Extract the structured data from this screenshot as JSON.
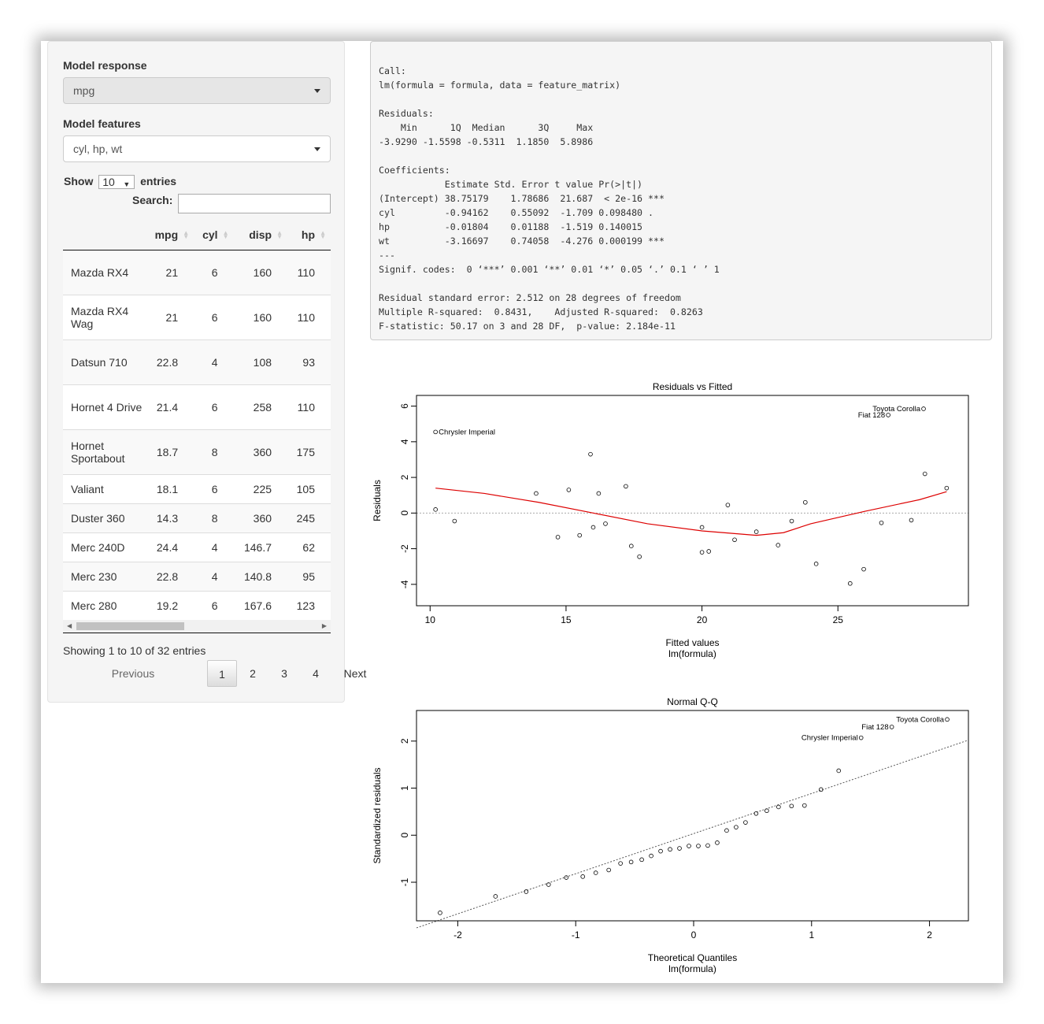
{
  "sidebar": {
    "response_label": "Model response",
    "response_value": "mpg",
    "features_label": "Model features",
    "features_value": "cyl, hp, wt",
    "show_label": "Show",
    "entries_value": "10",
    "entries_label": "entries",
    "search_label": "Search:",
    "search_value": ""
  },
  "table": {
    "columns": [
      "",
      "mpg",
      "cyl",
      "disp",
      "hp"
    ],
    "rows": [
      {
        "name": "Mazda RX4",
        "mpg": "21",
        "cyl": "6",
        "disp": "160",
        "hp": "110"
      },
      {
        "name": "Mazda RX4 Wag",
        "mpg": "21",
        "cyl": "6",
        "disp": "160",
        "hp": "110"
      },
      {
        "name": "Datsun 710",
        "mpg": "22.8",
        "cyl": "4",
        "disp": "108",
        "hp": "93"
      },
      {
        "name": "Hornet 4 Drive",
        "mpg": "21.4",
        "cyl": "6",
        "disp": "258",
        "hp": "110"
      },
      {
        "name": "Hornet Sportabout",
        "mpg": "18.7",
        "cyl": "8",
        "disp": "360",
        "hp": "175"
      },
      {
        "name": "Valiant",
        "mpg": "18.1",
        "cyl": "6",
        "disp": "225",
        "hp": "105"
      },
      {
        "name": "Duster 360",
        "mpg": "14.3",
        "cyl": "8",
        "disp": "360",
        "hp": "245"
      },
      {
        "name": "Merc 240D",
        "mpg": "24.4",
        "cyl": "4",
        "disp": "146.7",
        "hp": "62"
      },
      {
        "name": "Merc 230",
        "mpg": "22.8",
        "cyl": "4",
        "disp": "140.8",
        "hp": "95"
      },
      {
        "name": "Merc 280",
        "mpg": "19.2",
        "cyl": "6",
        "disp": "167.6",
        "hp": "123"
      }
    ],
    "info": "Showing 1 to 10 of 32 entries",
    "pager": {
      "previous": "Previous",
      "pages": [
        "1",
        "2",
        "3",
        "4"
      ],
      "active": "1",
      "next": "Next"
    }
  },
  "summary_lines": [
    "Call:",
    "lm(formula = formula, data = feature_matrix)",
    "",
    "Residuals:",
    "    Min      1Q  Median      3Q     Max ",
    "-3.9290 -1.5598 -0.5311  1.1850  5.8986 ",
    "",
    "Coefficients:",
    "            Estimate Std. Error t value Pr(>|t|)    ",
    "(Intercept) 38.75179    1.78686  21.687  < 2e-16 ***",
    "cyl         -0.94162    0.55092  -1.709 0.098480 .  ",
    "hp          -0.01804    0.01188  -1.519 0.140015    ",
    "wt          -3.16697    0.74058  -4.276 0.000199 ***",
    "---",
    "Signif. codes:  0 ‘***’ 0.001 ‘**’ 0.01 ‘*’ 0.05 ‘.’ 0.1 ‘ ’ 1",
    "",
    "Residual standard error: 2.512 on 28 degrees of freedom",
    "Multiple R-squared:  0.8431,\tAdjusted R-squared:  0.8263 ",
    "F-statistic: 50.17 on 3 and 28 DF,  p-value: 2.184e-11"
  ],
  "chart_data": [
    {
      "type": "scatter",
      "title": "Residuals vs Fitted",
      "xlabel": "Fitted values",
      "xlabel2": "lm(formula)",
      "ylabel": "Residuals",
      "xlim": [
        9.5,
        29.8
      ],
      "ylim": [
        -5.2,
        6.6
      ],
      "xticks": [
        10,
        15,
        20,
        25
      ],
      "yticks": [
        -4,
        -2,
        0,
        2,
        4,
        6
      ],
      "points": [
        [
          10.2,
          0.2
        ],
        [
          10.2,
          4.55
        ],
        [
          10.9,
          -0.45
        ],
        [
          13.9,
          1.1
        ],
        [
          14.7,
          -1.35
        ],
        [
          15.1,
          1.3
        ],
        [
          15.5,
          -1.25
        ],
        [
          15.9,
          3.3
        ],
        [
          16.0,
          -0.8
        ],
        [
          16.2,
          1.1
        ],
        [
          16.45,
          -0.6
        ],
        [
          17.2,
          1.5
        ],
        [
          17.4,
          -1.85
        ],
        [
          17.7,
          -2.45
        ],
        [
          20.0,
          -0.8
        ],
        [
          20.0,
          -2.2
        ],
        [
          20.25,
          -2.15
        ],
        [
          20.95,
          0.45
        ],
        [
          21.2,
          -1.5
        ],
        [
          22.0,
          -1.05
        ],
        [
          22.8,
          -1.8
        ],
        [
          23.3,
          -0.45
        ],
        [
          23.8,
          0.6
        ],
        [
          24.2,
          -2.85
        ],
        [
          25.45,
          -3.95
        ],
        [
          25.95,
          -3.15
        ],
        [
          26.6,
          -0.55
        ],
        [
          26.85,
          5.5
        ],
        [
          27.7,
          -0.4
        ],
        [
          28.15,
          5.85
        ],
        [
          28.2,
          2.2
        ],
        [
          29.0,
          1.4
        ]
      ],
      "smooth": [
        [
          10.2,
          1.4
        ],
        [
          12.0,
          1.1
        ],
        [
          14.0,
          0.6
        ],
        [
          16.0,
          0.0
        ],
        [
          18.0,
          -0.6
        ],
        [
          20.0,
          -1.0
        ],
        [
          22.0,
          -1.25
        ],
        [
          23.0,
          -1.1
        ],
        [
          24.0,
          -0.6
        ],
        [
          26.0,
          0.1
        ],
        [
          28.0,
          0.75
        ],
        [
          29.0,
          1.2
        ]
      ],
      "labels": [
        {
          "text": "Chrysler Imperial",
          "x": 10.2,
          "y": 4.55
        },
        {
          "text": "Toyota Corolla",
          "x": 28.15,
          "y": 5.85
        },
        {
          "text": "Fiat 128",
          "x": 26.85,
          "y": 5.5
        }
      ],
      "smooth_color": "#dd0000"
    },
    {
      "type": "scatter",
      "title": "Normal Q-Q",
      "xlabel": "Theoretical Quantiles",
      "xlabel2": "lm(formula)",
      "ylabel": "Standardized residuals",
      "xlim": [
        -2.35,
        2.33
      ],
      "ylim": [
        -1.82,
        2.65
      ],
      "xticks": [
        -2,
        -1,
        0,
        1,
        2
      ],
      "yticks": [
        -1,
        0,
        1,
        2
      ],
      "points": [
        [
          -2.15,
          -1.65
        ],
        [
          -1.68,
          -1.3
        ],
        [
          -1.42,
          -1.2
        ],
        [
          -1.23,
          -1.05
        ],
        [
          -1.08,
          -0.9
        ],
        [
          -0.94,
          -0.88
        ],
        [
          -0.83,
          -0.8
        ],
        [
          -0.72,
          -0.74
        ],
        [
          -0.62,
          -0.6
        ],
        [
          -0.53,
          -0.57
        ],
        [
          -0.44,
          -0.52
        ],
        [
          -0.36,
          -0.44
        ],
        [
          -0.28,
          -0.34
        ],
        [
          -0.2,
          -0.3
        ],
        [
          -0.12,
          -0.28
        ],
        [
          -0.04,
          -0.23
        ],
        [
          0.04,
          -0.23
        ],
        [
          0.12,
          -0.22
        ],
        [
          0.2,
          -0.16
        ],
        [
          0.28,
          0.1
        ],
        [
          0.36,
          0.17
        ],
        [
          0.44,
          0.27
        ],
        [
          0.53,
          0.46
        ],
        [
          0.62,
          0.52
        ],
        [
          0.72,
          0.6
        ],
        [
          0.83,
          0.62
        ],
        [
          0.94,
          0.63
        ],
        [
          1.08,
          0.97
        ],
        [
          1.23,
          1.37
        ],
        [
          1.42,
          2.07
        ],
        [
          1.68,
          2.3
        ],
        [
          2.15,
          2.46
        ]
      ],
      "refline": [
        [
          -2.35,
          -1.97
        ],
        [
          2.33,
          2.02
        ]
      ],
      "labels": [
        {
          "text": "Toyota Corolla",
          "x": 2.15,
          "y": 2.46
        },
        {
          "text": "Fiat 128",
          "x": 1.68,
          "y": 2.3
        },
        {
          "text": "Chrysler Imperial",
          "x": 1.42,
          "y": 2.07
        }
      ]
    }
  ]
}
